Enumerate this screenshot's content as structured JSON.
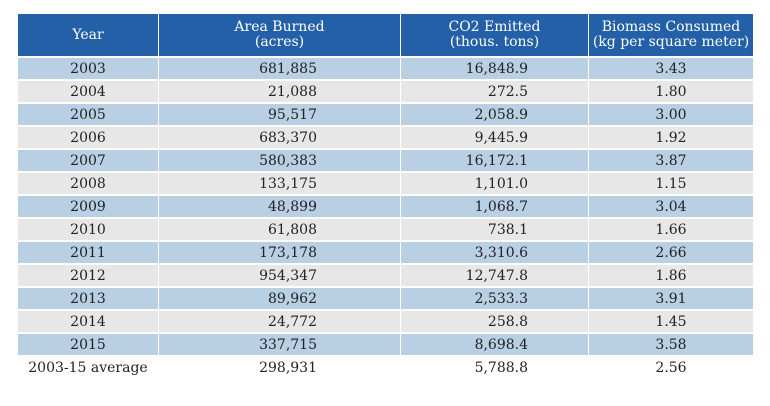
{
  "table": {
    "headers": [
      {
        "line1": "Year",
        "line2": ""
      },
      {
        "line1": "Area Burned",
        "line2": "(acres)"
      },
      {
        "line1": "CO2 Emitted",
        "line2": "(thous. tons)"
      },
      {
        "line1": "Biomass Consumed",
        "line2": "(kg per square meter)"
      }
    ],
    "rows": [
      {
        "year": "2003",
        "area": "681,885",
        "co2": "16,848.9",
        "biomass": "3.43"
      },
      {
        "year": "2004",
        "area": "21,088",
        "co2": "272.5",
        "biomass": "1.80"
      },
      {
        "year": "2005",
        "area": "95,517",
        "co2": "2,058.9",
        "biomass": "3.00"
      },
      {
        "year": "2006",
        "area": "683,370",
        "co2": "9,445.9",
        "biomass": "1.92"
      },
      {
        "year": "2007",
        "area": "580,383",
        "co2": "16,172.1",
        "biomass": "3.87"
      },
      {
        "year": "2008",
        "area": "133,175",
        "co2": "1,101.0",
        "biomass": "1.15"
      },
      {
        "year": "2009",
        "area": "48,899",
        "co2": "1,068.7",
        "biomass": "3.04"
      },
      {
        "year": "2010",
        "area": "61,808",
        "co2": "738.1",
        "biomass": "1.66"
      },
      {
        "year": "2011",
        "area": "173,178",
        "co2": "3,310.6",
        "biomass": "2.66"
      },
      {
        "year": "2012",
        "area": "954,347",
        "co2": "12,747.8",
        "biomass": "1.86"
      },
      {
        "year": "2013",
        "area": "89,962",
        "co2": "2,533.3",
        "biomass": "3.91"
      },
      {
        "year": "2014",
        "area": "24,772",
        "co2": "258.8",
        "biomass": "1.45"
      },
      {
        "year": "2015",
        "area": "337,715",
        "co2": "8,698.4",
        "biomass": "3.58"
      },
      {
        "year": "2003-15 average",
        "area": "298,931",
        "co2": "5,788.8",
        "biomass": "2.56"
      }
    ]
  },
  "colors": {
    "header_bg": "#2460a7",
    "row_blue": "#b8cfe4",
    "row_gray": "#e7e7e8"
  }
}
